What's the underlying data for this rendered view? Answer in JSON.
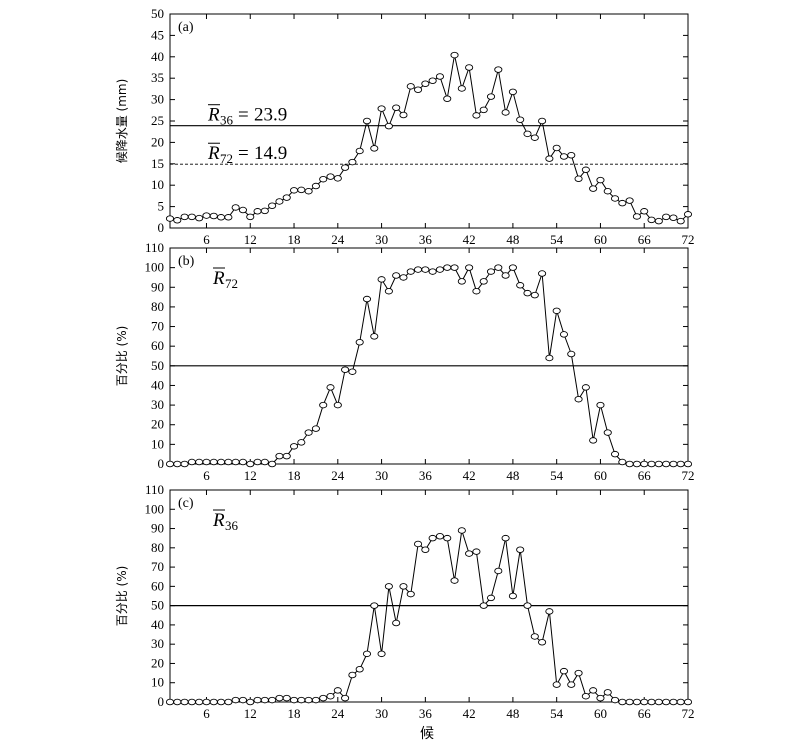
{
  "chart_data": [
    {
      "type": "line",
      "panel_label": "(a)",
      "ylabel": "候降水量 (mm)",
      "xlabel": "",
      "xlim": [
        1,
        72
      ],
      "ylim": [
        0,
        50
      ],
      "xticks": [
        6,
        12,
        18,
        24,
        30,
        36,
        42,
        48,
        54,
        60,
        66,
        72
      ],
      "yticks": [
        0,
        5,
        10,
        15,
        20,
        25,
        30,
        35,
        40,
        45,
        50
      ],
      "ref_lines": [
        {
          "symbol": "R",
          "subscript": "36",
          "equals": "=",
          "value_text": "23.9",
          "y": 23.9,
          "style": "solid"
        },
        {
          "symbol": "R",
          "subscript": "72",
          "equals": "=",
          "value_text": "14.9",
          "y": 14.9,
          "style": "dashed"
        }
      ],
      "x": [
        1,
        2,
        3,
        4,
        5,
        6,
        7,
        8,
        9,
        10,
        11,
        12,
        13,
        14,
        15,
        16,
        17,
        18,
        19,
        20,
        21,
        22,
        23,
        24,
        25,
        26,
        27,
        28,
        29,
        30,
        31,
        32,
        33,
        34,
        35,
        36,
        37,
        38,
        39,
        40,
        41,
        42,
        43,
        44,
        45,
        46,
        47,
        48,
        49,
        50,
        51,
        52,
        53,
        54,
        55,
        56,
        57,
        58,
        59,
        60,
        61,
        62,
        63,
        64,
        65,
        66,
        67,
        68,
        69,
        70,
        71,
        72
      ],
      "values": [
        2.2,
        1.8,
        2.6,
        2.6,
        2.3,
        2.9,
        2.8,
        2.5,
        2.5,
        4.8,
        4.2,
        2.6,
        3.9,
        4.0,
        5.2,
        6.2,
        7.1,
        8.8,
        8.9,
        8.6,
        9.8,
        11.4,
        12.0,
        11.6,
        14.1,
        15.4,
        18.0,
        25.0,
        18.6,
        27.9,
        23.8,
        28.1,
        26.4,
        33.1,
        32.3,
        33.7,
        34.4,
        35.4,
        30.2,
        40.4,
        32.6,
        37.5,
        26.3,
        27.6,
        30.7,
        37.0,
        27.0,
        31.8,
        25.3,
        22.0,
        21.1,
        25.0,
        16.2,
        18.7,
        16.7,
        17.0,
        11.5,
        13.6,
        9.2,
        11.2,
        8.6,
        6.9,
        5.8,
        6.4,
        2.7,
        3.9,
        1.9,
        1.6,
        2.6,
        2.4,
        1.6,
        3.2
      ]
    },
    {
      "type": "line",
      "panel_label": "(b)",
      "ylabel": "百分比 (%)",
      "xlabel": "",
      "xlim": [
        1,
        72
      ],
      "ylim": [
        0,
        110
      ],
      "xticks": [
        6,
        12,
        18,
        24,
        30,
        36,
        42,
        48,
        54,
        60,
        66,
        72
      ],
      "yticks": [
        0,
        10,
        20,
        30,
        40,
        50,
        60,
        70,
        80,
        90,
        100,
        110
      ],
      "ref_lines": [
        {
          "y": 50,
          "style": "solid"
        }
      ],
      "corner_text": {
        "symbol": "R",
        "subscript": "72"
      },
      "x": [
        1,
        2,
        3,
        4,
        5,
        6,
        7,
        8,
        9,
        10,
        11,
        12,
        13,
        14,
        15,
        16,
        17,
        18,
        19,
        20,
        21,
        22,
        23,
        24,
        25,
        26,
        27,
        28,
        29,
        30,
        31,
        32,
        33,
        34,
        35,
        36,
        37,
        38,
        39,
        40,
        41,
        42,
        43,
        44,
        45,
        46,
        47,
        48,
        49,
        50,
        51,
        52,
        53,
        54,
        55,
        56,
        57,
        58,
        59,
        60,
        61,
        62,
        63,
        64,
        65,
        66,
        67,
        68,
        69,
        70,
        71,
        72
      ],
      "values": [
        0,
        0,
        0,
        1,
        1,
        1,
        1,
        1,
        1,
        1,
        1,
        0,
        1,
        1,
        0,
        4,
        4,
        9,
        11,
        16,
        18,
        30,
        39,
        30,
        48,
        47,
        62,
        84,
        65,
        94,
        88,
        96,
        95,
        98,
        99,
        99,
        98,
        99,
        100,
        100,
        93,
        100,
        88,
        93,
        98,
        100,
        96,
        100,
        91,
        87,
        86,
        97,
        54,
        78,
        66,
        56,
        33,
        39,
        12,
        30,
        16,
        5,
        1,
        0,
        0,
        0,
        0,
        0,
        0,
        0,
        0,
        0
      ]
    },
    {
      "type": "line",
      "panel_label": "(c)",
      "ylabel": "百分比 (%)",
      "xlabel": "候",
      "xlim": [
        1,
        72
      ],
      "ylim": [
        0,
        110
      ],
      "xticks": [
        6,
        12,
        18,
        24,
        30,
        36,
        42,
        48,
        54,
        60,
        66,
        72
      ],
      "yticks": [
        0,
        10,
        20,
        30,
        40,
        50,
        60,
        70,
        80,
        90,
        100,
        110
      ],
      "ref_lines": [
        {
          "y": 50,
          "style": "solid"
        }
      ],
      "corner_text": {
        "symbol": "R",
        "subscript": "36"
      },
      "x": [
        1,
        2,
        3,
        4,
        5,
        6,
        7,
        8,
        9,
        10,
        11,
        12,
        13,
        14,
        15,
        16,
        17,
        18,
        19,
        20,
        21,
        22,
        23,
        24,
        25,
        26,
        27,
        28,
        29,
        30,
        31,
        32,
        33,
        34,
        35,
        36,
        37,
        38,
        39,
        40,
        41,
        42,
        43,
        44,
        45,
        46,
        47,
        48,
        49,
        50,
        51,
        52,
        53,
        54,
        55,
        56,
        57,
        58,
        59,
        60,
        61,
        62,
        63,
        64,
        65,
        66,
        67,
        68,
        69,
        70,
        71,
        72
      ],
      "values": [
        0,
        0,
        0,
        0,
        0,
        0,
        0,
        0,
        0,
        1,
        1,
        0,
        1,
        1,
        1,
        2,
        2,
        1,
        1,
        1,
        1,
        2,
        3,
        6,
        2,
        14,
        17,
        25,
        50,
        25,
        60,
        41,
        60,
        56,
        82,
        79,
        85,
        86,
        85,
        63,
        89,
        77,
        78,
        50,
        54,
        68,
        85,
        55,
        79,
        50,
        34,
        31,
        47,
        9,
        16,
        9,
        15,
        3,
        6,
        2,
        5,
        1,
        0,
        0,
        0,
        0,
        0,
        0,
        0,
        0,
        0,
        0
      ]
    }
  ]
}
